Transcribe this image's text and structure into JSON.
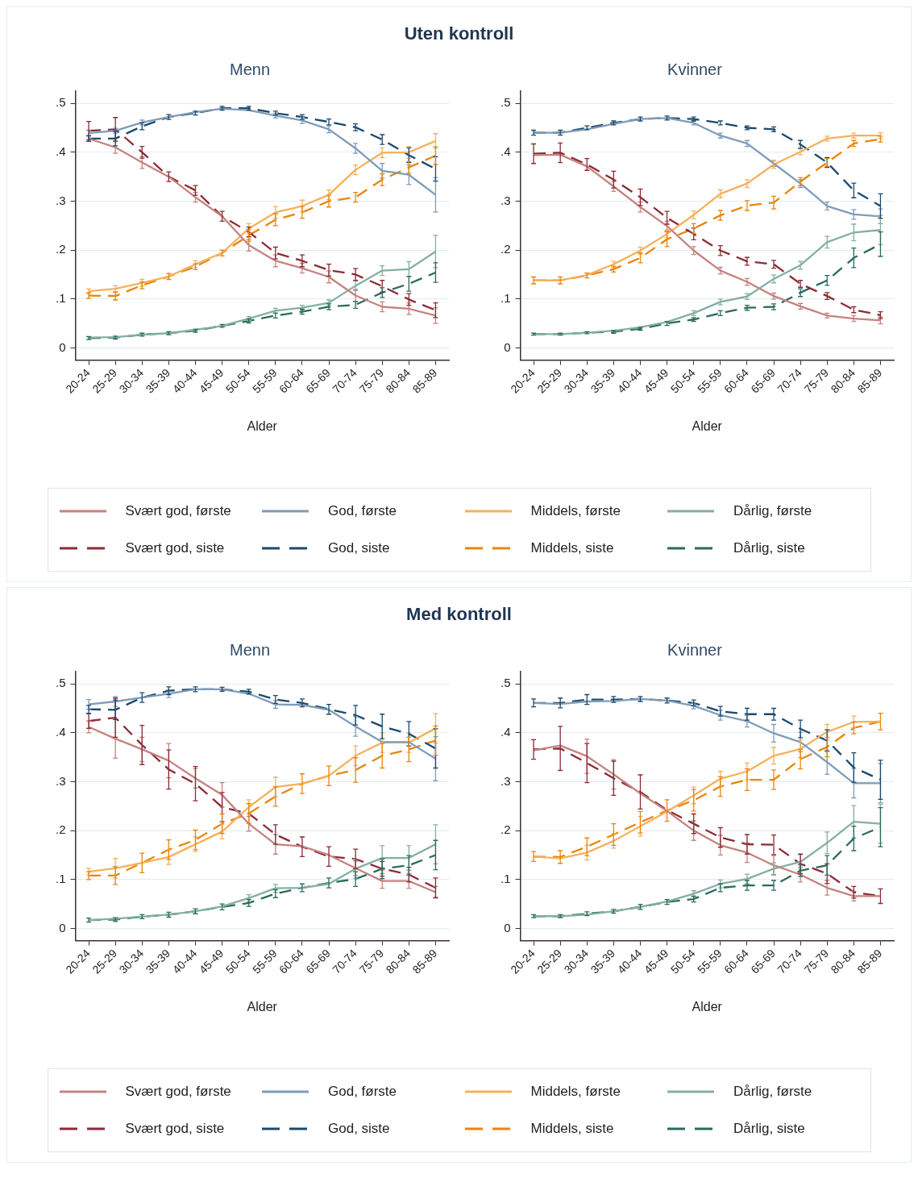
{
  "chart_data": [
    {
      "type": "line",
      "title": "Uten kontroll",
      "subtitle": "Menn",
      "xlabel": "Alder",
      "categories": [
        "20-24",
        "25-29",
        "30-34",
        "35-39",
        "40-44",
        "45-49",
        "50-54",
        "55-59",
        "60-64",
        "65-69",
        "70-74",
        "75-79",
        "80-84",
        "85-89"
      ],
      "ylim": [
        -0.025,
        0.525
      ],
      "yticks": [
        {
          "value": 0,
          "label": "0"
        },
        {
          "value": 0.1,
          "label": ".1"
        },
        {
          "value": 0.2,
          "label": ".2"
        },
        {
          "value": 0.3,
          "label": ".3"
        },
        {
          "value": 0.4,
          "label": ".4"
        },
        {
          "value": 0.5,
          "label": ".5"
        }
      ],
      "grid": "y",
      "legend": "bottom",
      "series": [
        {
          "name": "Svært god, første",
          "color": "#c4837f",
          "line_style": "solid",
          "values": [
            0.428,
            0.41,
            0.379,
            0.35,
            0.308,
            0.269,
            0.21,
            0.178,
            0.163,
            0.145,
            0.107,
            0.084,
            0.08,
            0.066
          ],
          "errors": [
            null,
            0.012,
            0.012,
            null,
            0.01,
            null,
            0.012,
            0.012,
            0.01,
            0.012,
            0.012,
            0.01,
            0.012,
            0.016
          ]
        },
        {
          "name": "God, første",
          "color": "#7f9cb8",
          "line_style": "solid",
          "values": [
            0.439,
            0.444,
            0.461,
            0.472,
            0.482,
            0.489,
            0.486,
            0.475,
            0.465,
            0.447,
            0.408,
            0.362,
            0.354,
            0.313
          ],
          "errors": [
            0.006,
            0.005,
            0.005,
            null,
            null,
            null,
            null,
            0.005,
            0.006,
            0.007,
            0.01,
            0.015,
            0.02,
            0.035
          ]
        },
        {
          "name": "Middels, første",
          "color": "#f5b15c",
          "line_style": "solid",
          "values": [
            0.116,
            0.121,
            0.133,
            0.146,
            0.171,
            0.194,
            0.244,
            0.277,
            0.29,
            0.313,
            0.364,
            0.399,
            0.4,
            0.423
          ],
          "errors": [
            0.005,
            0.006,
            0.007,
            null,
            0.007,
            null,
            0.01,
            0.012,
            0.012,
            0.01,
            0.01,
            0.01,
            0.012,
            0.015
          ]
        },
        {
          "name": "Dårlig, første",
          "color": "#85afa3",
          "line_style": "solid",
          "values": [
            0.021,
            0.022,
            0.027,
            0.03,
            0.037,
            0.045,
            0.06,
            0.076,
            0.082,
            0.092,
            0.127,
            0.158,
            0.161,
            0.197
          ],
          "errors": [
            null,
            null,
            null,
            null,
            null,
            null,
            0.004,
            0.005,
            0.005,
            0.006,
            0.01,
            0.01,
            0.015,
            0.033
          ]
        },
        {
          "name": "Svært god, siste",
          "color": "#8c2b36",
          "line_style": "dashed",
          "values": [
            0.444,
            0.447,
            0.4,
            0.35,
            0.322,
            0.269,
            0.237,
            0.194,
            0.178,
            0.159,
            0.15,
            0.126,
            0.099,
            0.077
          ],
          "errors": [
            0.019,
            0.024,
            0.012,
            0.01,
            0.01,
            0.01,
            0.01,
            0.012,
            0.012,
            0.012,
            0.012,
            0.012,
            0.012,
            0.015
          ]
        },
        {
          "name": "God, siste",
          "color": "#1c4a6e",
          "line_style": "dashed",
          "values": [
            0.428,
            0.428,
            0.453,
            0.472,
            0.48,
            0.49,
            0.49,
            0.48,
            0.472,
            0.462,
            0.451,
            0.426,
            0.394,
            0.366
          ],
          "errors": [
            0.006,
            0.015,
            0.007,
            0.005,
            0.004,
            0.004,
            0.004,
            0.004,
            0.005,
            0.006,
            0.007,
            0.01,
            0.015,
            0.025
          ]
        },
        {
          "name": "Middels, siste",
          "color": "#e8860c",
          "line_style": "dashed",
          "values": [
            0.107,
            0.106,
            0.128,
            0.146,
            0.166,
            0.194,
            0.23,
            0.262,
            0.277,
            0.3,
            0.308,
            0.344,
            0.369,
            0.393
          ],
          "errors": [
            0.006,
            0.008,
            0.007,
            0.006,
            0.006,
            0.006,
            0.012,
            0.012,
            0.012,
            0.012,
            0.01,
            0.012,
            0.012,
            0.018
          ]
        },
        {
          "name": "Dårlig, siste",
          "color": "#2b6b5d",
          "line_style": "dashed",
          "values": [
            0.02,
            0.021,
            0.027,
            0.03,
            0.035,
            0.045,
            0.055,
            0.066,
            0.074,
            0.084,
            0.088,
            0.113,
            0.131,
            0.154
          ],
          "errors": [
            0.003,
            0.003,
            0.003,
            0.003,
            0.003,
            0.003,
            0.004,
            0.005,
            0.005,
            0.006,
            0.007,
            0.01,
            0.015,
            0.02
          ]
        }
      ]
    },
    {
      "type": "line",
      "subtitle": "Kvinner",
      "xlabel": "Alder",
      "categories": [
        "20-24",
        "25-29",
        "30-34",
        "35-39",
        "40-44",
        "45-49",
        "50-54",
        "55-59",
        "60-64",
        "65-69",
        "70-74",
        "75-79",
        "80-84",
        "85-89"
      ],
      "ylim": [
        -0.025,
        0.525
      ],
      "yticks": [
        {
          "value": 0,
          "label": "0"
        },
        {
          "value": 0.1,
          "label": ".1"
        },
        {
          "value": 0.2,
          "label": ".2"
        },
        {
          "value": 0.3,
          "label": ".3"
        },
        {
          "value": 0.4,
          "label": ".4"
        },
        {
          "value": 0.5,
          "label": ".5"
        }
      ],
      "grid": "y",
      "series": [
        {
          "color": "#c4837f",
          "line_style": "solid",
          "values": [
            0.394,
            0.395,
            0.371,
            0.33,
            0.288,
            0.249,
            0.199,
            0.158,
            0.135,
            0.106,
            0.085,
            0.066,
            0.06,
            0.056
          ],
          "errors": [
            null,
            null,
            null,
            0.01,
            0.01,
            0.01,
            0.008,
            0.007,
            0.007,
            0.006,
            0.006,
            0.005,
            0.006,
            0.007
          ]
        },
        {
          "color": "#7f9cb8",
          "line_style": "solid",
          "values": [
            0.44,
            0.44,
            0.447,
            0.458,
            0.468,
            0.47,
            0.46,
            0.434,
            0.418,
            0.377,
            0.336,
            0.29,
            0.273,
            0.269
          ],
          "errors": [
            null,
            null,
            null,
            null,
            null,
            null,
            0.004,
            0.005,
            0.006,
            0.006,
            0.008,
            0.008,
            0.01,
            0.015
          ]
        },
        {
          "color": "#f5b15c",
          "line_style": "solid",
          "values": [
            0.138,
            0.138,
            0.149,
            0.171,
            0.199,
            0.233,
            0.272,
            0.315,
            0.336,
            0.375,
            0.401,
            0.428,
            0.434,
            0.434
          ],
          "errors": [
            null,
            null,
            null,
            0.006,
            0.007,
            0.008,
            0.008,
            0.008,
            0.008,
            0.008,
            0.006,
            0.005,
            0.005,
            0.006
          ]
        },
        {
          "color": "#85afa3",
          "line_style": "solid",
          "values": [
            0.028,
            0.028,
            0.031,
            0.035,
            0.042,
            0.053,
            0.071,
            0.094,
            0.105,
            0.141,
            0.169,
            0.216,
            0.236,
            0.241
          ],
          "errors": [
            null,
            null,
            null,
            null,
            null,
            null,
            0.005,
            0.006,
            0.006,
            0.008,
            0.008,
            0.012,
            0.017,
            0.03
          ]
        },
        {
          "color": "#8c2b36",
          "line_style": "dashed",
          "values": [
            0.397,
            0.399,
            0.375,
            0.344,
            0.308,
            0.266,
            0.233,
            0.199,
            0.177,
            0.171,
            0.131,
            0.106,
            0.078,
            0.067
          ],
          "errors": [
            0.02,
            0.02,
            0.012,
            0.017,
            0.017,
            0.013,
            0.012,
            0.01,
            0.008,
            0.008,
            0.007,
            0.007,
            0.006,
            0.007
          ]
        },
        {
          "color": "#1c4a6e",
          "line_style": "dashed",
          "values": [
            0.44,
            0.44,
            0.45,
            0.46,
            0.468,
            0.47,
            0.468,
            0.46,
            0.45,
            0.447,
            0.416,
            0.379,
            0.322,
            0.29
          ],
          "errors": [
            0.005,
            0.005,
            0.004,
            0.004,
            0.004,
            0.004,
            0.004,
            0.004,
            0.004,
            0.005,
            0.008,
            0.01,
            0.015,
            0.025
          ]
        },
        {
          "color": "#e8860c",
          "line_style": "dashed",
          "values": [
            0.138,
            0.138,
            0.148,
            0.161,
            0.184,
            0.222,
            0.244,
            0.271,
            0.291,
            0.297,
            0.34,
            0.379,
            0.418,
            0.427
          ],
          "errors": [
            0.007,
            0.007,
            0.005,
            0.006,
            0.01,
            0.015,
            0.01,
            0.01,
            0.01,
            0.013,
            0.008,
            0.008,
            0.006,
            0.006
          ]
        },
        {
          "color": "#2b6b5d",
          "line_style": "dashed",
          "values": [
            0.028,
            0.028,
            0.031,
            0.033,
            0.039,
            0.05,
            0.058,
            0.071,
            0.082,
            0.084,
            0.113,
            0.138,
            0.184,
            0.212
          ],
          "errors": [
            0.002,
            0.002,
            0.002,
            0.003,
            0.003,
            0.004,
            0.004,
            0.005,
            0.005,
            0.006,
            0.008,
            0.01,
            0.02,
            0.025
          ]
        }
      ]
    },
    {
      "type": "line",
      "title": "Med kontroll",
      "subtitle": "Menn",
      "xlabel": "Alder",
      "categories": [
        "20-24",
        "25-29",
        "30-34",
        "35-39",
        "40-44",
        "45-49",
        "50-54",
        "55-59",
        "60-64",
        "65-69",
        "70-74",
        "75-79",
        "80-84",
        "85-89"
      ],
      "ylim": [
        -0.025,
        0.525
      ],
      "yticks": [
        {
          "value": 0,
          "label": "0"
        },
        {
          "value": 0.1,
          "label": ".1"
        },
        {
          "value": 0.2,
          "label": ".2"
        },
        {
          "value": 0.3,
          "label": ".3"
        },
        {
          "value": 0.4,
          "label": ".4"
        },
        {
          "value": 0.5,
          "label": ".5"
        }
      ],
      "grid": "y",
      "legend": "bottom",
      "series": [
        {
          "name": "Svært god, første",
          "color": "#c4837f",
          "line_style": "solid",
          "values": [
            0.412,
            0.388,
            0.366,
            0.343,
            0.307,
            0.273,
            0.214,
            0.172,
            0.168,
            0.15,
            0.123,
            0.097,
            0.097,
            0.074
          ],
          "errors": [
            0.012,
            0.04,
            0.025,
            0.035,
            0.02,
            0.025,
            0.015,
            0.02,
            null,
            null,
            0.015,
            0.015,
            0.015,
            0.012
          ]
        },
        {
          "name": "God, første",
          "color": "#7f9cb8",
          "line_style": "solid",
          "values": [
            0.458,
            0.464,
            0.472,
            0.48,
            0.489,
            0.489,
            0.48,
            0.458,
            0.457,
            0.447,
            0.413,
            0.381,
            0.381,
            0.347
          ],
          "errors": [
            0.01,
            0.01,
            null,
            0.008,
            null,
            null,
            null,
            0.008,
            null,
            null,
            0.02,
            null,
            null,
            0.045
          ]
        },
        {
          "name": "Middels, første",
          "color": "#f5b15c",
          "line_style": "solid",
          "values": [
            0.116,
            0.123,
            0.134,
            0.146,
            0.172,
            0.198,
            0.248,
            0.289,
            0.296,
            0.312,
            0.353,
            0.38,
            0.38,
            0.409
          ],
          "errors": [
            0.007,
            0.02,
            null,
            0.015,
            0.015,
            0.015,
            0.015,
            0.02,
            null,
            null,
            0.02,
            0.02,
            0.02,
            0.03
          ]
        },
        {
          "name": "Dårlig, første",
          "color": "#85afa3",
          "line_style": "solid",
          "values": [
            0.017,
            0.02,
            0.024,
            0.028,
            0.035,
            0.045,
            0.062,
            0.082,
            0.083,
            0.091,
            0.122,
            0.144,
            0.144,
            0.172
          ],
          "errors": [
            null,
            null,
            null,
            null,
            null,
            null,
            0.007,
            0.008,
            null,
            null,
            0.02,
            0.025,
            0.025,
            0.04
          ]
        },
        {
          "name": "Svært god, siste",
          "color": "#8c2b36",
          "line_style": "dashed",
          "values": [
            0.424,
            0.431,
            0.375,
            0.325,
            0.296,
            0.248,
            0.235,
            0.192,
            0.167,
            0.147,
            0.142,
            0.122,
            0.11,
            0.083
          ],
          "errors": [
            0.015,
            0.04,
            0.04,
            0.04,
            0.035,
            0.03,
            null,
            0.02,
            0.02,
            0.02,
            0.02,
            0.015,
            0.015,
            0.02
          ]
        },
        {
          "name": "God, siste",
          "color": "#1c4a6e",
          "line_style": "dashed",
          "values": [
            0.448,
            0.447,
            0.472,
            0.486,
            0.489,
            0.489,
            0.484,
            0.468,
            0.461,
            0.448,
            0.436,
            0.413,
            0.398,
            0.368
          ],
          "errors": [
            0.008,
            0.02,
            0.01,
            0.008,
            0.005,
            0.004,
            0.005,
            0.008,
            0.008,
            0.01,
            0.02,
            0.025,
            0.025,
            0.04
          ]
        },
        {
          "name": "Middels, siste",
          "color": "#e8860c",
          "line_style": "dashed",
          "values": [
            0.108,
            0.108,
            0.134,
            0.161,
            0.181,
            0.214,
            0.235,
            0.27,
            0.296,
            0.312,
            0.324,
            0.353,
            0.366,
            0.384
          ],
          "errors": [
            0.008,
            0.018,
            0.02,
            0.02,
            0.02,
            0.02,
            0.02,
            0.02,
            0.02,
            0.02,
            0.025,
            0.025,
            0.025,
            0.03
          ]
        },
        {
          "name": "Dårlig, siste",
          "color": "#2b6b5d",
          "line_style": "dashed",
          "values": [
            0.017,
            0.018,
            0.024,
            0.028,
            0.035,
            0.044,
            0.052,
            0.071,
            0.083,
            0.093,
            0.101,
            0.122,
            0.129,
            0.15
          ],
          "errors": [
            0.004,
            0.004,
            0.004,
            0.005,
            0.005,
            0.006,
            0.007,
            0.008,
            0.008,
            0.01,
            0.015,
            0.02,
            0.02,
            0.03
          ]
        }
      ]
    },
    {
      "type": "line",
      "subtitle": "Kvinner",
      "xlabel": "Alder",
      "categories": [
        "20-24",
        "25-29",
        "30-34",
        "35-39",
        "40-44",
        "45-49",
        "50-54",
        "55-59",
        "60-64",
        "65-69",
        "70-74",
        "75-79",
        "80-84",
        "85-89"
      ],
      "ylim": [
        -0.025,
        0.525
      ],
      "yticks": [
        {
          "value": 0,
          "label": "0"
        },
        {
          "value": 0.1,
          "label": ".1"
        },
        {
          "value": 0.2,
          "label": ".2"
        },
        {
          "value": 0.3,
          "label": ".3"
        },
        {
          "value": 0.4,
          "label": ".4"
        },
        {
          "value": 0.5,
          "label": ".5"
        }
      ],
      "grid": "y",
      "series": [
        {
          "color": "#c4837f",
          "line_style": "solid",
          "values": [
            0.364,
            0.374,
            0.352,
            0.315,
            0.276,
            0.24,
            0.2,
            0.17,
            0.155,
            0.129,
            0.11,
            0.083,
            0.066,
            0.066
          ],
          "errors": [
            null,
            null,
            0.035,
            0.03,
            null,
            null,
            0.02,
            0.02,
            0.02,
            0.02,
            0.015,
            0.015,
            0.01,
            null
          ]
        },
        {
          "color": "#7f9cb8",
          "line_style": "solid",
          "values": [
            0.461,
            0.459,
            0.464,
            0.465,
            0.469,
            0.466,
            0.455,
            0.436,
            0.424,
            0.399,
            0.381,
            0.34,
            0.297,
            0.297
          ],
          "errors": [
            null,
            null,
            null,
            null,
            null,
            null,
            0.006,
            0.01,
            0.012,
            0.018,
            0.02,
            0.025,
            0.03,
            0.04
          ]
        },
        {
          "color": "#f5b15c",
          "line_style": "solid",
          "values": [
            0.147,
            0.143,
            0.155,
            0.179,
            0.209,
            0.239,
            0.272,
            0.306,
            0.321,
            0.353,
            0.367,
            0.402,
            0.422,
            0.423
          ],
          "errors": [
            null,
            null,
            0.015,
            0.015,
            0.02,
            null,
            0.017,
            0.015,
            0.017,
            0.017,
            0.018,
            0.015,
            0.012,
            null
          ]
        },
        {
          "color": "#85afa3",
          "line_style": "solid",
          "values": [
            0.025,
            0.025,
            0.028,
            0.035,
            0.044,
            0.055,
            0.071,
            0.091,
            0.101,
            0.122,
            0.136,
            0.175,
            0.218,
            0.214
          ],
          "errors": [
            null,
            null,
            null,
            null,
            null,
            null,
            0.006,
            0.008,
            0.01,
            0.012,
            0.015,
            0.022,
            0.033,
            0.04
          ]
        },
        {
          "color": "#8c2b36",
          "line_style": "dashed",
          "values": [
            0.366,
            0.368,
            0.338,
            0.307,
            0.279,
            0.242,
            0.214,
            0.186,
            0.172,
            0.171,
            0.132,
            0.112,
            0.074,
            0.066
          ],
          "errors": [
            0.02,
            0.045,
            0.04,
            0.035,
            0.035,
            null,
            0.02,
            0.02,
            0.02,
            0.02,
            0.02,
            0.02,
            0.012,
            0.015
          ]
        },
        {
          "color": "#1c4a6e",
          "line_style": "dashed",
          "values": [
            0.461,
            0.461,
            0.468,
            0.468,
            0.469,
            0.466,
            0.461,
            0.444,
            0.438,
            0.438,
            0.408,
            0.384,
            0.329,
            0.304
          ],
          "errors": [
            0.008,
            0.01,
            0.01,
            0.006,
            0.005,
            0.005,
            0.006,
            0.01,
            0.012,
            0.012,
            0.018,
            0.022,
            0.03,
            0.04
          ]
        },
        {
          "color": "#e8860c",
          "line_style": "dashed",
          "values": [
            0.147,
            0.146,
            0.167,
            0.192,
            0.217,
            0.241,
            0.262,
            0.29,
            0.304,
            0.304,
            0.346,
            0.371,
            0.41,
            0.423
          ],
          "errors": [
            0.01,
            0.013,
            0.018,
            0.022,
            0.022,
            0.022,
            0.022,
            0.02,
            0.022,
            0.02,
            0.02,
            0.02,
            0.012,
            0.017
          ]
        },
        {
          "color": "#2b6b5d",
          "line_style": "dashed",
          "values": [
            0.025,
            0.025,
            0.03,
            0.035,
            0.044,
            0.054,
            0.06,
            0.083,
            0.088,
            0.088,
            0.118,
            0.129,
            0.184,
            0.207
          ],
          "errors": [
            0.003,
            0.003,
            0.004,
            0.004,
            0.005,
            0.005,
            0.006,
            0.008,
            0.01,
            0.01,
            0.012,
            0.02,
            0.025,
            0.04
          ]
        }
      ]
    }
  ]
}
